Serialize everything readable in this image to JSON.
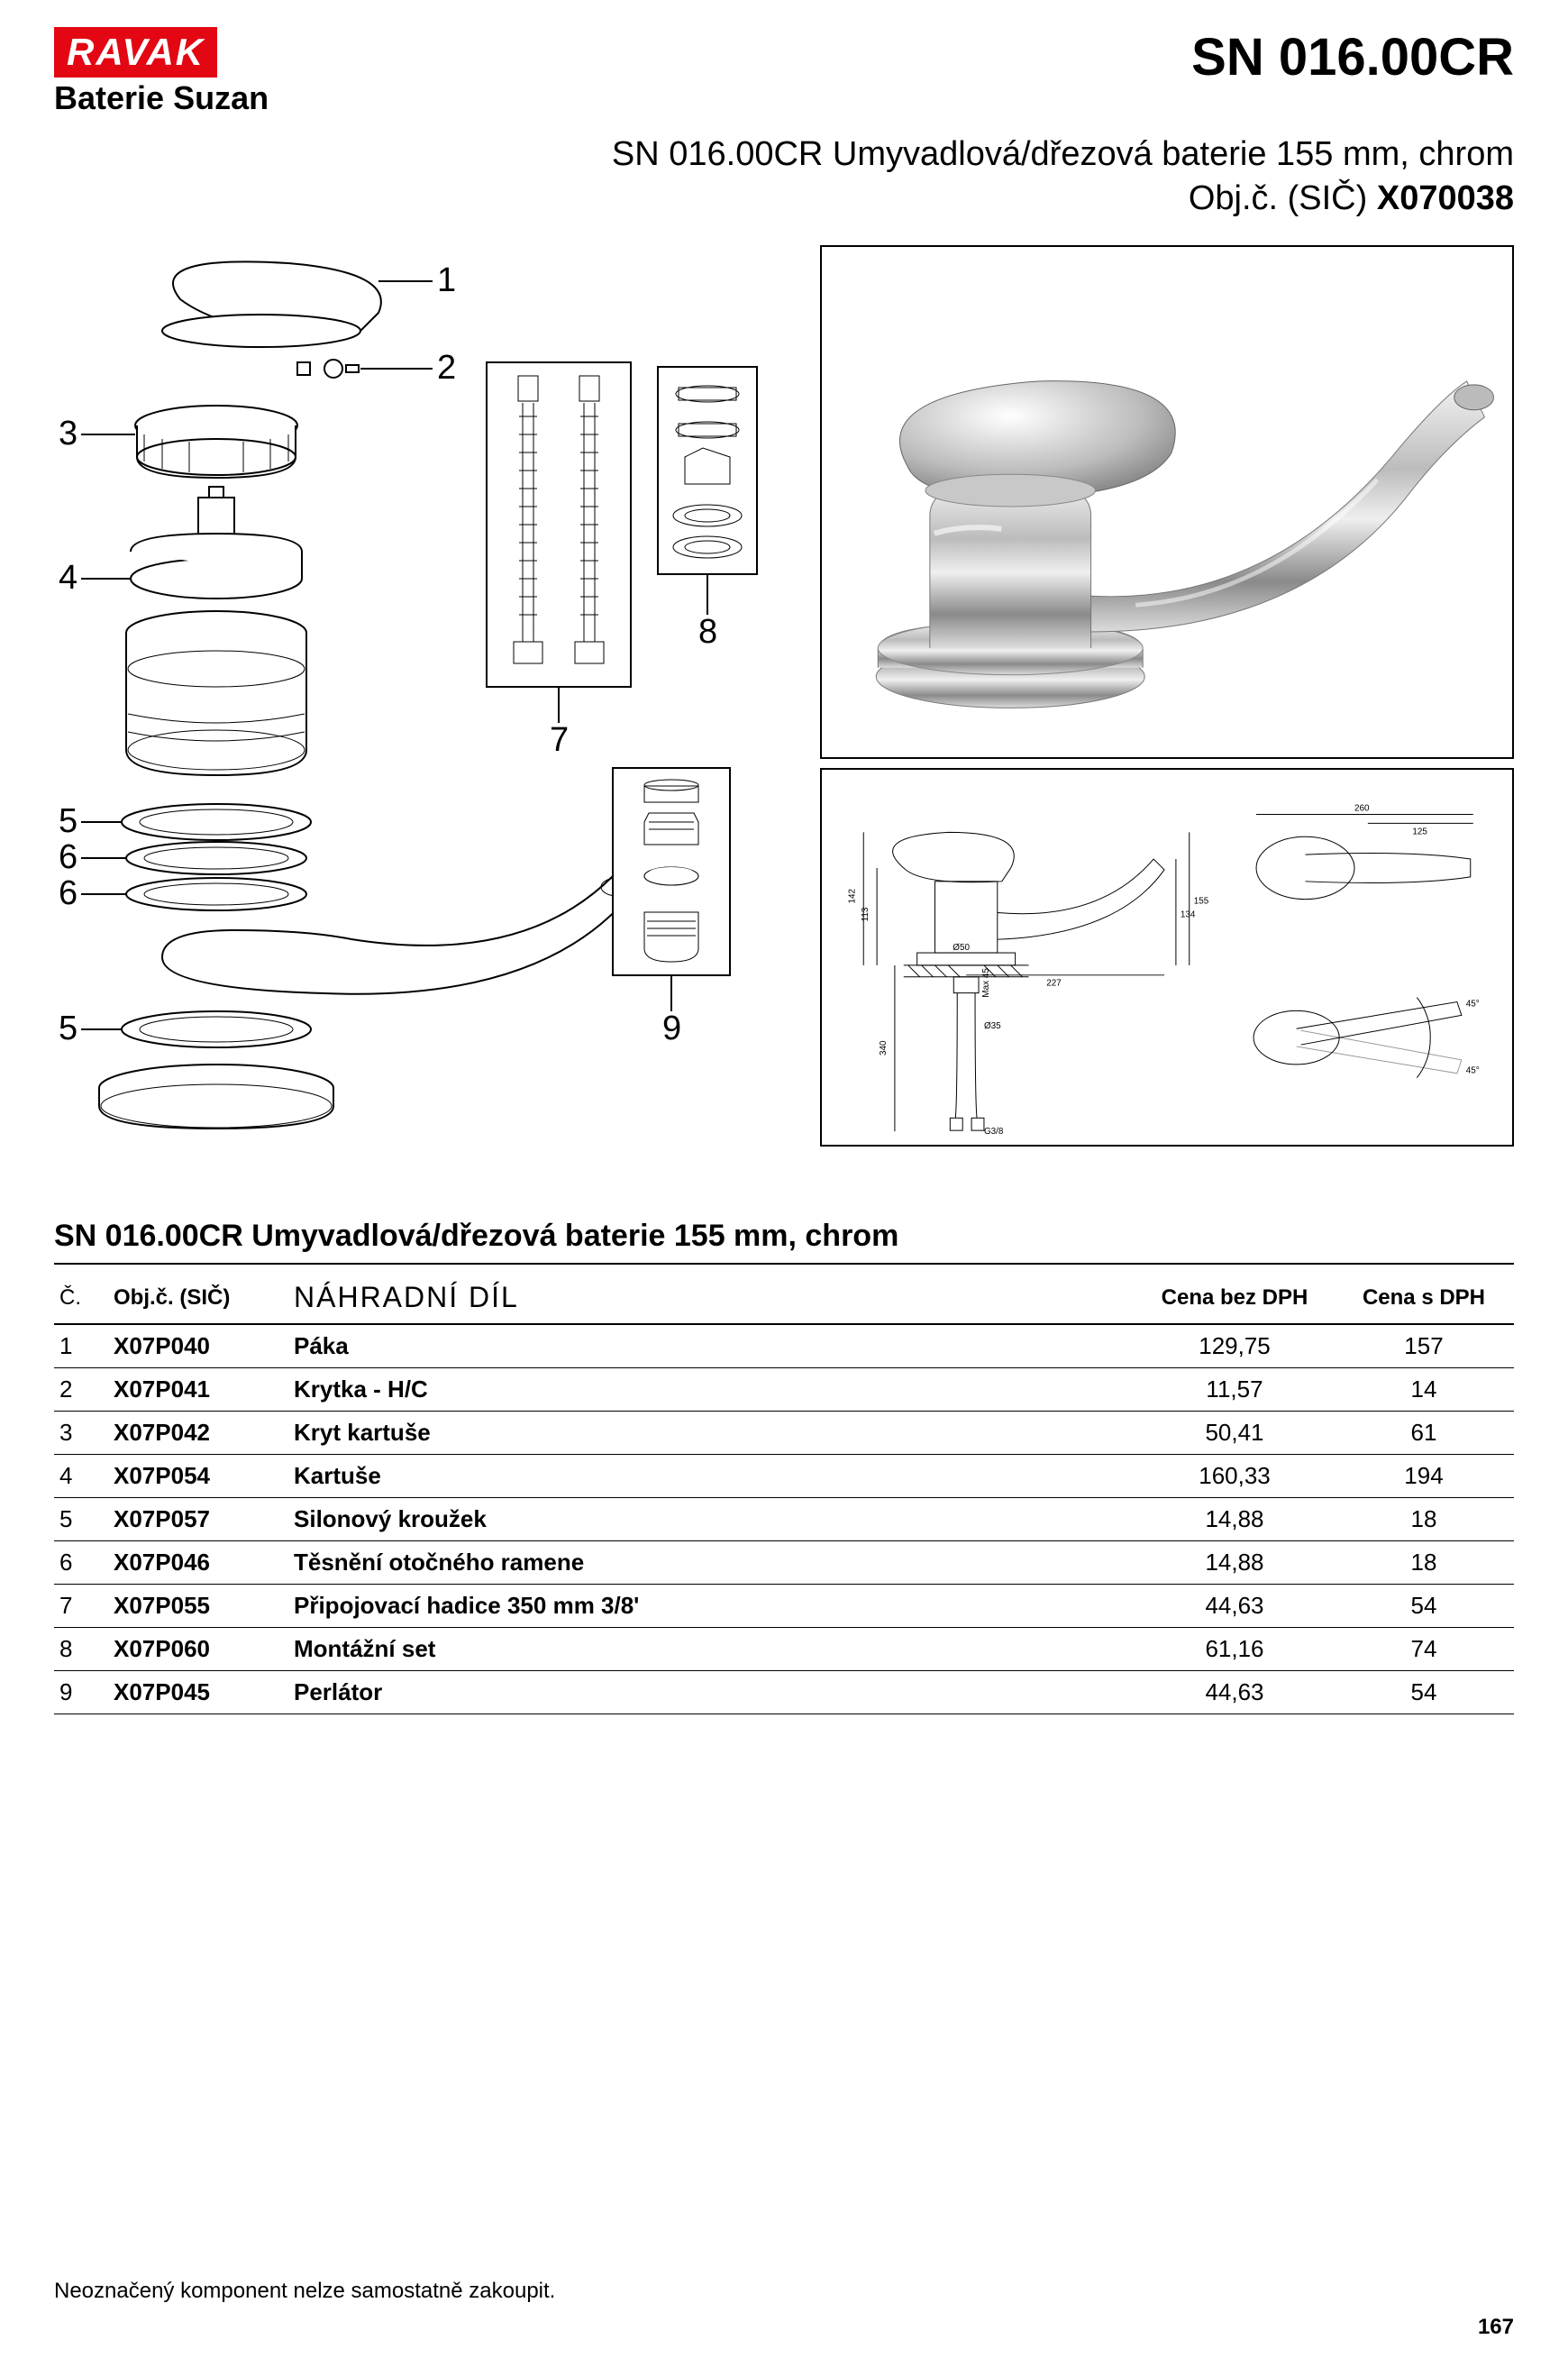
{
  "brand": "RAVAK",
  "series": "Baterie Suzan",
  "product_code": "SN 016.00CR",
  "subtitle": "SN 016.00CR Umyvadlová/dřezová baterie 155 mm, chrom",
  "order_label": "Obj.č. (SIČ)",
  "order_code": "X070038",
  "callouts": {
    "c1": "1",
    "c2": "2",
    "c3": "3",
    "c4": "4",
    "c5": "5",
    "c6": "6",
    "c6b": "6",
    "c5b": "5",
    "c7": "7",
    "c8": "8",
    "c9": "9"
  },
  "tech_dims": {
    "d142": "142",
    "d113": "113",
    "d50": "Ø50",
    "d227": "227",
    "d340": "340",
    "dmax": "Max 45",
    "d35": "Ø35",
    "dg38": "G3/8",
    "d134": "134",
    "d155": "155",
    "d260": "260",
    "d125": "125",
    "a45a": "45°",
    "a45b": "45°"
  },
  "table_title": "SN 016.00CR Umyvadlová/dřezová baterie 155 mm, chrom",
  "columns": {
    "num": "Č.",
    "obj": "Obj.č. (SIČ)",
    "part": "NÁHRADNÍ DÍL",
    "p_ex": "Cena bez DPH",
    "p_in": "Cena s DPH"
  },
  "rows": [
    {
      "n": "1",
      "obj": "X07P040",
      "name": "Páka",
      "p1": "129,75",
      "p2": "157"
    },
    {
      "n": "2",
      "obj": "X07P041",
      "name": "Krytka - H/C",
      "p1": "11,57",
      "p2": "14"
    },
    {
      "n": "3",
      "obj": "X07P042",
      "name": "Kryt kartuše",
      "p1": "50,41",
      "p2": "61"
    },
    {
      "n": "4",
      "obj": "X07P054",
      "name": "Kartuše",
      "p1": "160,33",
      "p2": "194"
    },
    {
      "n": "5",
      "obj": "X07P057",
      "name": "Silonový kroužek",
      "p1": "14,88",
      "p2": "18"
    },
    {
      "n": "6",
      "obj": "X07P046",
      "name": "Těsnění otočného ramene",
      "p1": "14,88",
      "p2": "18"
    },
    {
      "n": "7",
      "obj": "X07P055",
      "name": "Připojovací hadice 350 mm 3/8'",
      "p1": "44,63",
      "p2": "54"
    },
    {
      "n": "8",
      "obj": "X07P060",
      "name": "Montážní set",
      "p1": "61,16",
      "p2": "74"
    },
    {
      "n": "9",
      "obj": "X07P045",
      "name": "Perlátor",
      "p1": "44,63",
      "p2": "54"
    }
  ],
  "footnote": "Neoznačený komponent nelze samostatně zakoupit.",
  "page": "167"
}
